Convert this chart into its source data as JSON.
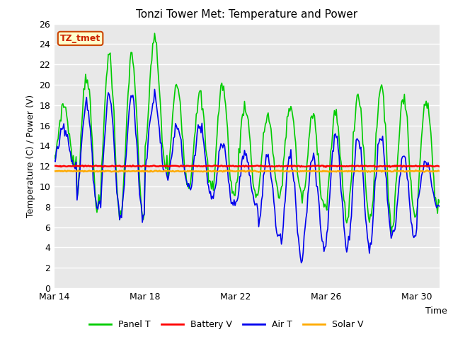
{
  "title": "Tonzi Tower Met: Temperature and Power",
  "ylabel": "Temperature (C) / Power (V)",
  "xlabel": "Time",
  "ylim": [
    0,
    26
  ],
  "yticks": [
    0,
    2,
    4,
    6,
    8,
    10,
    12,
    14,
    16,
    18,
    20,
    22,
    24,
    26
  ],
  "xtick_labels": [
    "Mar 14",
    "Mar 18",
    "Mar 22",
    "Mar 26",
    "Mar 30"
  ],
  "xtick_pos": [
    0,
    4,
    8,
    12,
    16
  ],
  "xlim": [
    0,
    17
  ],
  "plot_bg_color": "#e8e8e8",
  "grid_color": "#ffffff",
  "legend_label_text": "TZ_tmet",
  "legend_box_facecolor": "#ffffcc",
  "legend_box_edgecolor": "#cc4400",
  "battery_v_value": 12.0,
  "solar_v_value": 11.5,
  "series": {
    "panel_t": {
      "color": "#00cc00",
      "label": "Panel T"
    },
    "battery_v": {
      "color": "#ff0000",
      "label": "Battery V"
    },
    "air_t": {
      "color": "#0000ee",
      "label": "Air T"
    },
    "solar_v": {
      "color": "#ffaa00",
      "label": "Solar V"
    }
  }
}
